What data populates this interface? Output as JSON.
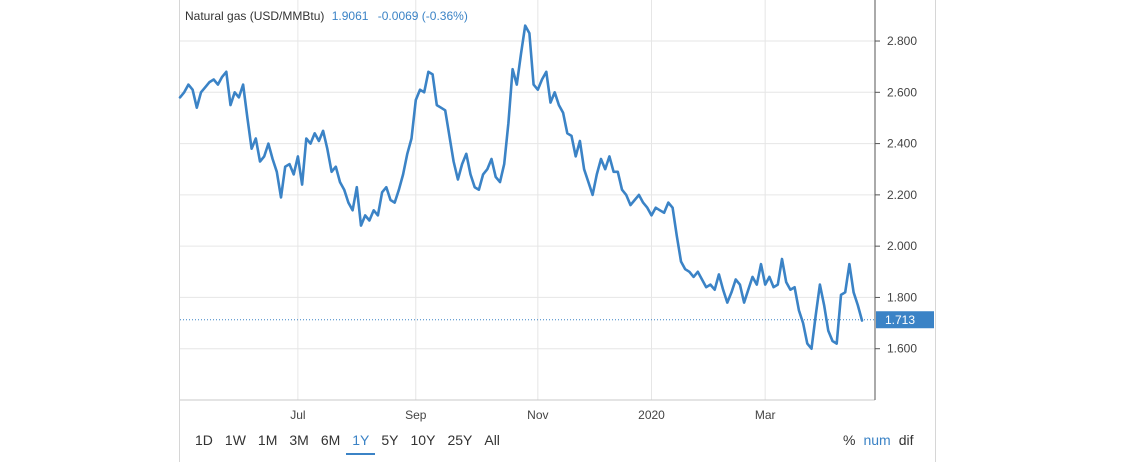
{
  "header": {
    "label": "Natural gas (USD/MMBtu)",
    "value": "1.9061",
    "change": "-0.0069 (-0.36%)"
  },
  "range_buttons": [
    "1D",
    "1W",
    "1M",
    "3M",
    "6M",
    "1Y",
    "5Y",
    "10Y",
    "25Y",
    "All"
  ],
  "active_range": "1Y",
  "mode_buttons": [
    "%",
    "num",
    "dif"
  ],
  "active_mode": "num",
  "current_price": "1.713",
  "colors": {
    "line": "#3b83c6",
    "grid": "#e6e6e6",
    "axis": "#444444",
    "tag_bg": "#3b83c6"
  },
  "chart_data": {
    "type": "line",
    "title": "Natural gas (USD/MMBtu)",
    "xlabel": "",
    "ylabel": "",
    "ylim": [
      1.4,
      2.96
    ],
    "x_ticks": [
      {
        "label": "Jul",
        "index": 28
      },
      {
        "label": "Sep",
        "index": 56
      },
      {
        "label": "Nov",
        "index": 85
      },
      {
        "label": "2020",
        "index": 112
      },
      {
        "label": "Mar",
        "index": 139
      }
    ],
    "y_ticks": [
      "1.600",
      "1.800",
      "2.000",
      "2.200",
      "2.400",
      "2.600",
      "2.800"
    ],
    "current_value": 1.713,
    "grid": true,
    "series": [
      {
        "values": [
          2.58,
          2.6,
          2.63,
          2.61,
          2.54,
          2.6,
          2.62,
          2.64,
          2.65,
          2.63,
          2.66,
          2.68,
          2.55,
          2.6,
          2.58,
          2.63,
          2.5,
          2.38,
          2.42,
          2.33,
          2.35,
          2.4,
          2.34,
          2.29,
          2.19,
          2.31,
          2.32,
          2.28,
          2.35,
          2.24,
          2.42,
          2.4,
          2.44,
          2.41,
          2.45,
          2.38,
          2.29,
          2.31,
          2.25,
          2.22,
          2.17,
          2.14,
          2.23,
          2.08,
          2.12,
          2.1,
          2.14,
          2.12,
          2.21,
          2.23,
          2.18,
          2.17,
          2.22,
          2.28,
          2.36,
          2.42,
          2.57,
          2.61,
          2.6,
          2.68,
          2.67,
          2.55,
          2.54,
          2.53,
          2.43,
          2.33,
          2.26,
          2.32,
          2.36,
          2.28,
          2.23,
          2.22,
          2.28,
          2.3,
          2.34,
          2.27,
          2.25,
          2.32,
          2.48,
          2.69,
          2.63,
          2.75,
          2.86,
          2.83,
          2.63,
          2.61,
          2.65,
          2.68,
          2.56,
          2.6,
          2.55,
          2.52,
          2.44,
          2.43,
          2.35,
          2.41,
          2.3,
          2.25,
          2.2,
          2.28,
          2.34,
          2.3,
          2.35,
          2.29,
          2.29,
          2.22,
          2.2,
          2.16,
          2.18,
          2.2,
          2.17,
          2.15,
          2.12,
          2.15,
          2.14,
          2.13,
          2.17,
          2.15,
          2.04,
          1.94,
          1.91,
          1.9,
          1.88,
          1.9,
          1.87,
          1.84,
          1.85,
          1.83,
          1.89,
          1.83,
          1.78,
          1.82,
          1.87,
          1.85,
          1.78,
          1.83,
          1.88,
          1.85,
          1.93,
          1.85,
          1.88,
          1.84,
          1.85,
          1.95,
          1.86,
          1.83,
          1.84,
          1.75,
          1.7,
          1.62,
          1.6,
          1.73,
          1.85,
          1.77,
          1.67,
          1.63,
          1.62,
          1.81,
          1.82,
          1.93,
          1.82,
          1.77,
          1.71
        ]
      }
    ]
  }
}
